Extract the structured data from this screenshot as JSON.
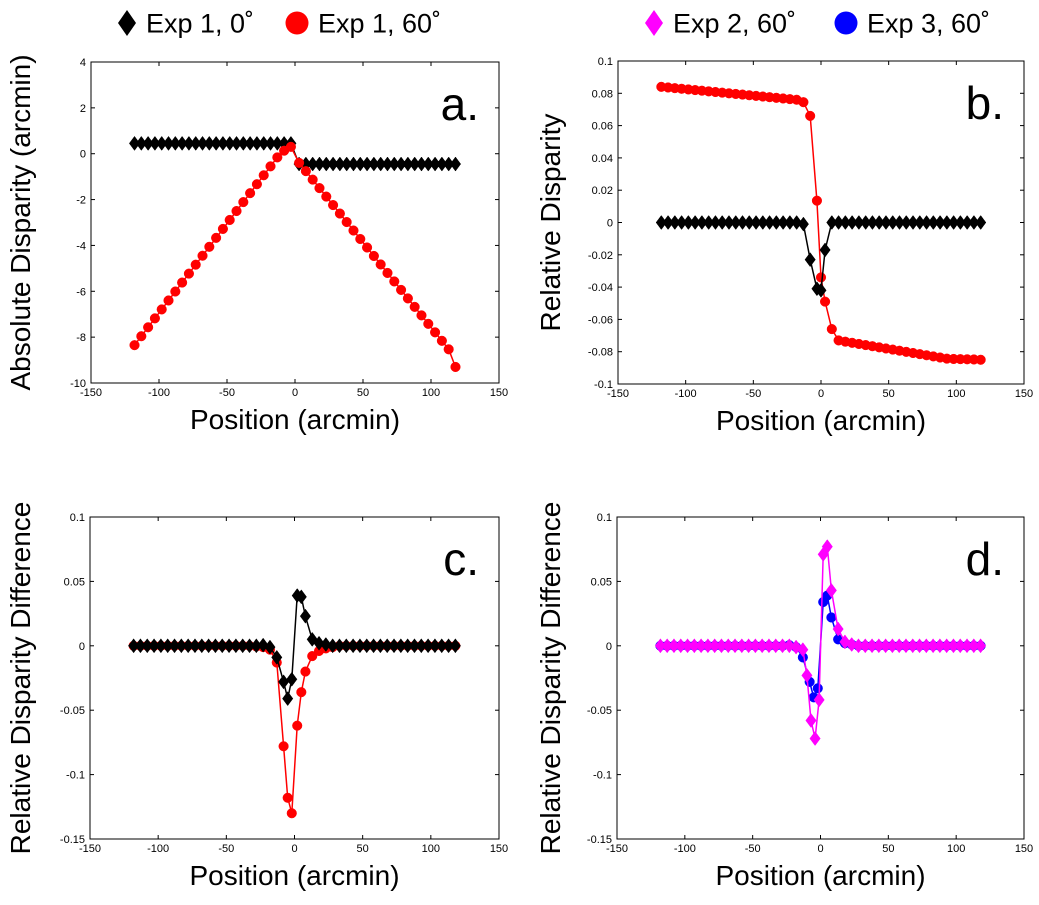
{
  "legends": [
    {
      "items": [
        {
          "label": "Exp 1, 0˚",
          "color": "#000000",
          "marker": "diamond"
        },
        {
          "label": "Exp 1, 60˚",
          "color": "#ff0000",
          "marker": "circle"
        }
      ]
    },
    {
      "items": [
        {
          "label": "Exp 2, 60˚",
          "color": "#ff00ff",
          "marker": "diamond"
        },
        {
          "label": "Exp 3, 60˚",
          "color": "#0000ff",
          "marker": "circle"
        }
      ]
    }
  ],
  "chart_data": [
    {
      "type": "line",
      "panel_label": "a.",
      "xlabel": "Position (arcmin)",
      "ylabel": "Absolute Disparity (arcmin)",
      "xlim": [
        -150,
        150
      ],
      "ylim": [
        -10,
        4
      ],
      "xticks": [
        -150,
        -100,
        -50,
        0,
        50,
        100,
        150
      ],
      "yticks": [
        -10,
        -8,
        -6,
        -4,
        -2,
        0,
        2,
        4
      ],
      "grid": false,
      "series": [
        {
          "name": "Exp 1, 0˚",
          "color": "#000000",
          "marker": "diamond",
          "line": true,
          "x": [
            -118,
            -113,
            -108,
            -103,
            -98,
            -93,
            -88,
            -83,
            -78,
            -73,
            -68,
            -63,
            -58,
            -53,
            -48,
            -43,
            -38,
            -33,
            -28,
            -23,
            -18,
            -13,
            -8,
            -3,
            3,
            8,
            13,
            18,
            23,
            28,
            33,
            38,
            43,
            48,
            53,
            58,
            63,
            68,
            73,
            78,
            83,
            88,
            93,
            98,
            103,
            108,
            113,
            118
          ],
          "y": [
            0.45,
            0.45,
            0.45,
            0.45,
            0.45,
            0.45,
            0.45,
            0.45,
            0.45,
            0.45,
            0.45,
            0.45,
            0.45,
            0.45,
            0.45,
            0.45,
            0.45,
            0.45,
            0.45,
            0.45,
            0.45,
            0.45,
            0.45,
            0.45,
            -0.45,
            -0.45,
            -0.45,
            -0.45,
            -0.45,
            -0.45,
            -0.45,
            -0.45,
            -0.45,
            -0.45,
            -0.45,
            -0.45,
            -0.45,
            -0.45,
            -0.45,
            -0.45,
            -0.45,
            -0.45,
            -0.45,
            -0.45,
            -0.45,
            -0.45,
            -0.45,
            -0.45
          ]
        },
        {
          "name": "Exp 1, 60˚",
          "color": "#ff0000",
          "marker": "circle",
          "line": true,
          "x": [
            -118,
            -113,
            -108,
            -103,
            -98,
            -93,
            -88,
            -83,
            -78,
            -73,
            -68,
            -63,
            -58,
            -53,
            -48,
            -43,
            -38,
            -33,
            -28,
            -23,
            -18,
            -13,
            -8,
            -3,
            3,
            8,
            13,
            18,
            23,
            28,
            33,
            38,
            43,
            48,
            53,
            58,
            63,
            68,
            73,
            78,
            83,
            88,
            93,
            98,
            103,
            108,
            113,
            118
          ],
          "y": [
            -8.35,
            -7.96,
            -7.57,
            -7.18,
            -6.79,
            -6.4,
            -6.01,
            -5.62,
            -5.23,
            -4.84,
            -4.45,
            -4.06,
            -3.67,
            -3.28,
            -2.89,
            -2.5,
            -2.11,
            -1.72,
            -1.33,
            -0.94,
            -0.55,
            -0.16,
            0.13,
            0.3,
            -0.4,
            -0.76,
            -1.13,
            -1.5,
            -1.87,
            -2.24,
            -2.61,
            -2.98,
            -3.35,
            -3.72,
            -4.09,
            -4.46,
            -4.83,
            -5.2,
            -5.57,
            -5.94,
            -6.31,
            -6.68,
            -7.05,
            -7.42,
            -7.79,
            -8.16,
            -8.53,
            -9.3
          ]
        }
      ]
    },
    {
      "type": "line",
      "panel_label": "b.",
      "xlabel": "Position (arcmin)",
      "ylabel": "Relative Disparity",
      "xlim": [
        -150,
        150
      ],
      "ylim": [
        -0.1,
        0.1
      ],
      "xticks": [
        -150,
        -100,
        -50,
        0,
        50,
        100,
        150
      ],
      "yticks": [
        -0.1,
        -0.08,
        -0.06,
        -0.04,
        -0.02,
        0,
        0.02,
        0.04,
        0.06,
        0.08,
        0.1
      ],
      "grid": false,
      "series": [
        {
          "name": "Exp 1, 60˚",
          "color": "#ff0000",
          "marker": "circle",
          "line": true,
          "x": [
            -118,
            -113,
            -108,
            -103,
            -98,
            -93,
            -88,
            -83,
            -78,
            -73,
            -68,
            -63,
            -58,
            -53,
            -48,
            -43,
            -38,
            -33,
            -28,
            -23,
            -18,
            -13,
            -8,
            -3,
            0,
            3,
            8,
            13,
            18,
            23,
            28,
            33,
            38,
            43,
            48,
            53,
            58,
            63,
            68,
            73,
            78,
            83,
            88,
            93,
            98,
            103,
            108,
            113,
            118
          ],
          "y": [
            0.084,
            0.0836,
            0.0832,
            0.0828,
            0.0824,
            0.082,
            0.0816,
            0.0812,
            0.0808,
            0.0804,
            0.08,
            0.0796,
            0.0792,
            0.0788,
            0.0784,
            0.078,
            0.0776,
            0.0772,
            0.0768,
            0.0764,
            0.076,
            0.0745,
            0.066,
            0.0135,
            -0.034,
            -0.049,
            -0.066,
            -0.073,
            -0.0738,
            -0.0745,
            -0.0752,
            -0.0759,
            -0.0766,
            -0.0773,
            -0.078,
            -0.0787,
            -0.0794,
            -0.0801,
            -0.0808,
            -0.0815,
            -0.0822,
            -0.0829,
            -0.0836,
            -0.0843,
            -0.0845,
            -0.0846,
            -0.0847,
            -0.0848,
            -0.085
          ]
        },
        {
          "name": "Exp 1, 0˚",
          "color": "#000000",
          "marker": "diamond",
          "line": true,
          "x": [
            -118,
            -113,
            -108,
            -103,
            -98,
            -93,
            -88,
            -83,
            -78,
            -73,
            -68,
            -63,
            -58,
            -53,
            -48,
            -43,
            -38,
            -33,
            -28,
            -23,
            -18,
            -13,
            -8,
            -3,
            0,
            3,
            8,
            13,
            18,
            23,
            28,
            33,
            38,
            43,
            48,
            53,
            58,
            63,
            68,
            73,
            78,
            83,
            88,
            93,
            98,
            103,
            108,
            113,
            118
          ],
          "y": [
            0,
            0,
            0,
            0,
            0,
            0,
            0,
            0,
            0,
            0,
            0,
            0,
            0,
            0,
            0,
            0,
            0,
            0,
            0,
            0,
            0,
            -0.001,
            -0.023,
            -0.041,
            -0.042,
            -0.017,
            0,
            0,
            0,
            0,
            0,
            0,
            0,
            0,
            0,
            0,
            0,
            0,
            0,
            0,
            0,
            0,
            0,
            0,
            0,
            0,
            0,
            0,
            0
          ]
        }
      ]
    },
    {
      "type": "line",
      "panel_label": "c.",
      "xlabel": "Position (arcmin)",
      "ylabel": "Relative Disparity Difference",
      "xlim": [
        -150,
        150
      ],
      "ylim": [
        -0.15,
        0.1
      ],
      "xticks": [
        -150,
        -100,
        -50,
        0,
        50,
        100,
        150
      ],
      "yticks": [
        -0.15,
        -0.1,
        -0.05,
        0,
        0.05,
        0.1
      ],
      "grid": false,
      "series": [
        {
          "name": "Exp 1, 60˚",
          "color": "#ff0000",
          "marker": "circle",
          "line": true,
          "x": [
            -118,
            -113,
            -108,
            -103,
            -98,
            -93,
            -88,
            -83,
            -78,
            -73,
            -68,
            -63,
            -58,
            -53,
            -48,
            -43,
            -38,
            -33,
            -28,
            -23,
            -18,
            -13,
            -8,
            -5,
            -2,
            2,
            5,
            8,
            13,
            18,
            23,
            28,
            33,
            38,
            43,
            48,
            53,
            58,
            63,
            68,
            73,
            78,
            83,
            88,
            93,
            98,
            103,
            108,
            113,
            118
          ],
          "y": [
            0,
            0,
            0,
            0,
            0,
            0,
            0,
            0,
            0,
            0,
            0,
            0,
            0,
            0,
            0,
            0,
            0,
            0,
            -0.0005,
            -0.001,
            -0.003,
            -0.013,
            -0.078,
            -0.118,
            -0.13,
            -0.062,
            -0.036,
            -0.02,
            -0.008,
            -0.004,
            -0.002,
            -0.001,
            0,
            0,
            0,
            0,
            0,
            0,
            0,
            0,
            0,
            0,
            0,
            0,
            0,
            0,
            0,
            0,
            0,
            0
          ]
        },
        {
          "name": "Exp 1, 0˚",
          "color": "#000000",
          "marker": "diamond",
          "line": true,
          "x": [
            -118,
            -113,
            -108,
            -103,
            -98,
            -93,
            -88,
            -83,
            -78,
            -73,
            -68,
            -63,
            -58,
            -53,
            -48,
            -43,
            -38,
            -33,
            -28,
            -23,
            -18,
            -13,
            -8,
            -5,
            -2,
            2,
            5,
            8,
            13,
            18,
            23,
            28,
            33,
            38,
            43,
            48,
            53,
            58,
            63,
            68,
            73,
            78,
            83,
            88,
            93,
            98,
            103,
            108,
            113,
            118
          ],
          "y": [
            0,
            0,
            0,
            0,
            0,
            0,
            0,
            0,
            0,
            0,
            0,
            0,
            0,
            0,
            0,
            0,
            0,
            0,
            0,
            0.0005,
            -0.001,
            -0.009,
            -0.028,
            -0.041,
            -0.026,
            0.039,
            0.038,
            0.023,
            0.005,
            0.002,
            0.001,
            0,
            0,
            0,
            0,
            0,
            0,
            0,
            0,
            0,
            0,
            0,
            0,
            0,
            0,
            0,
            0,
            0,
            0,
            0
          ]
        }
      ]
    },
    {
      "type": "line",
      "panel_label": "d.",
      "xlabel": "Position (arcmin)",
      "ylabel": "Relative Disparity Difference",
      "xlim": [
        -150,
        150
      ],
      "ylim": [
        -0.15,
        0.1
      ],
      "xticks": [
        -150,
        -100,
        -50,
        0,
        50,
        100,
        150
      ],
      "yticks": [
        -0.15,
        -0.1,
        -0.05,
        0,
        0.05,
        0.1
      ],
      "grid": false,
      "series": [
        {
          "name": "Exp 3, 60˚",
          "color": "#0000ff",
          "marker": "circle",
          "line": true,
          "x": [
            -118,
            -113,
            -108,
            -103,
            -98,
            -93,
            -88,
            -83,
            -78,
            -73,
            -68,
            -63,
            -58,
            -53,
            -48,
            -43,
            -38,
            -33,
            -28,
            -23,
            -18,
            -13,
            -8,
            -5,
            -2,
            2,
            5,
            8,
            13,
            18,
            23,
            28,
            33,
            38,
            43,
            48,
            53,
            58,
            63,
            68,
            73,
            78,
            83,
            88,
            93,
            98,
            103,
            108,
            113,
            118
          ],
          "y": [
            0,
            0,
            0,
            0,
            0,
            0,
            0,
            0,
            0,
            0,
            0,
            0,
            0,
            0,
            0,
            0,
            0,
            0,
            0,
            0.0005,
            -0.001,
            -0.009,
            -0.028,
            -0.04,
            -0.033,
            0.034,
            0.039,
            0.022,
            0.005,
            0.002,
            0.001,
            0,
            0,
            0,
            0,
            0,
            0,
            0,
            0,
            0,
            0,
            0,
            0,
            0,
            0,
            0,
            0,
            0,
            0,
            0
          ]
        },
        {
          "name": "Exp 2, 60˚",
          "color": "#ff00ff",
          "marker": "diamond",
          "line": true,
          "x": [
            -118,
            -113,
            -108,
            -103,
            -98,
            -93,
            -88,
            -83,
            -78,
            -73,
            -68,
            -63,
            -58,
            -53,
            -48,
            -43,
            -38,
            -33,
            -28,
            -23,
            -18,
            -13,
            -10,
            -7,
            -4,
            -1,
            2,
            5,
            8,
            13,
            18,
            23,
            28,
            33,
            38,
            43,
            48,
            53,
            58,
            63,
            68,
            73,
            78,
            83,
            88,
            93,
            98,
            103,
            108,
            113,
            118
          ],
          "y": [
            0,
            0,
            0,
            0,
            0,
            0,
            0,
            0,
            0,
            0,
            0,
            0,
            0,
            0,
            0,
            0,
            0,
            0,
            0,
            0,
            -0.001,
            -0.003,
            -0.023,
            -0.058,
            -0.072,
            -0.042,
            0.071,
            0.077,
            0.043,
            0.013,
            0.003,
            0.001,
            0,
            0,
            0,
            0,
            0,
            0,
            0,
            0,
            0,
            0,
            0,
            0,
            0,
            0,
            0,
            0,
            0,
            0,
            0
          ]
        }
      ]
    }
  ]
}
